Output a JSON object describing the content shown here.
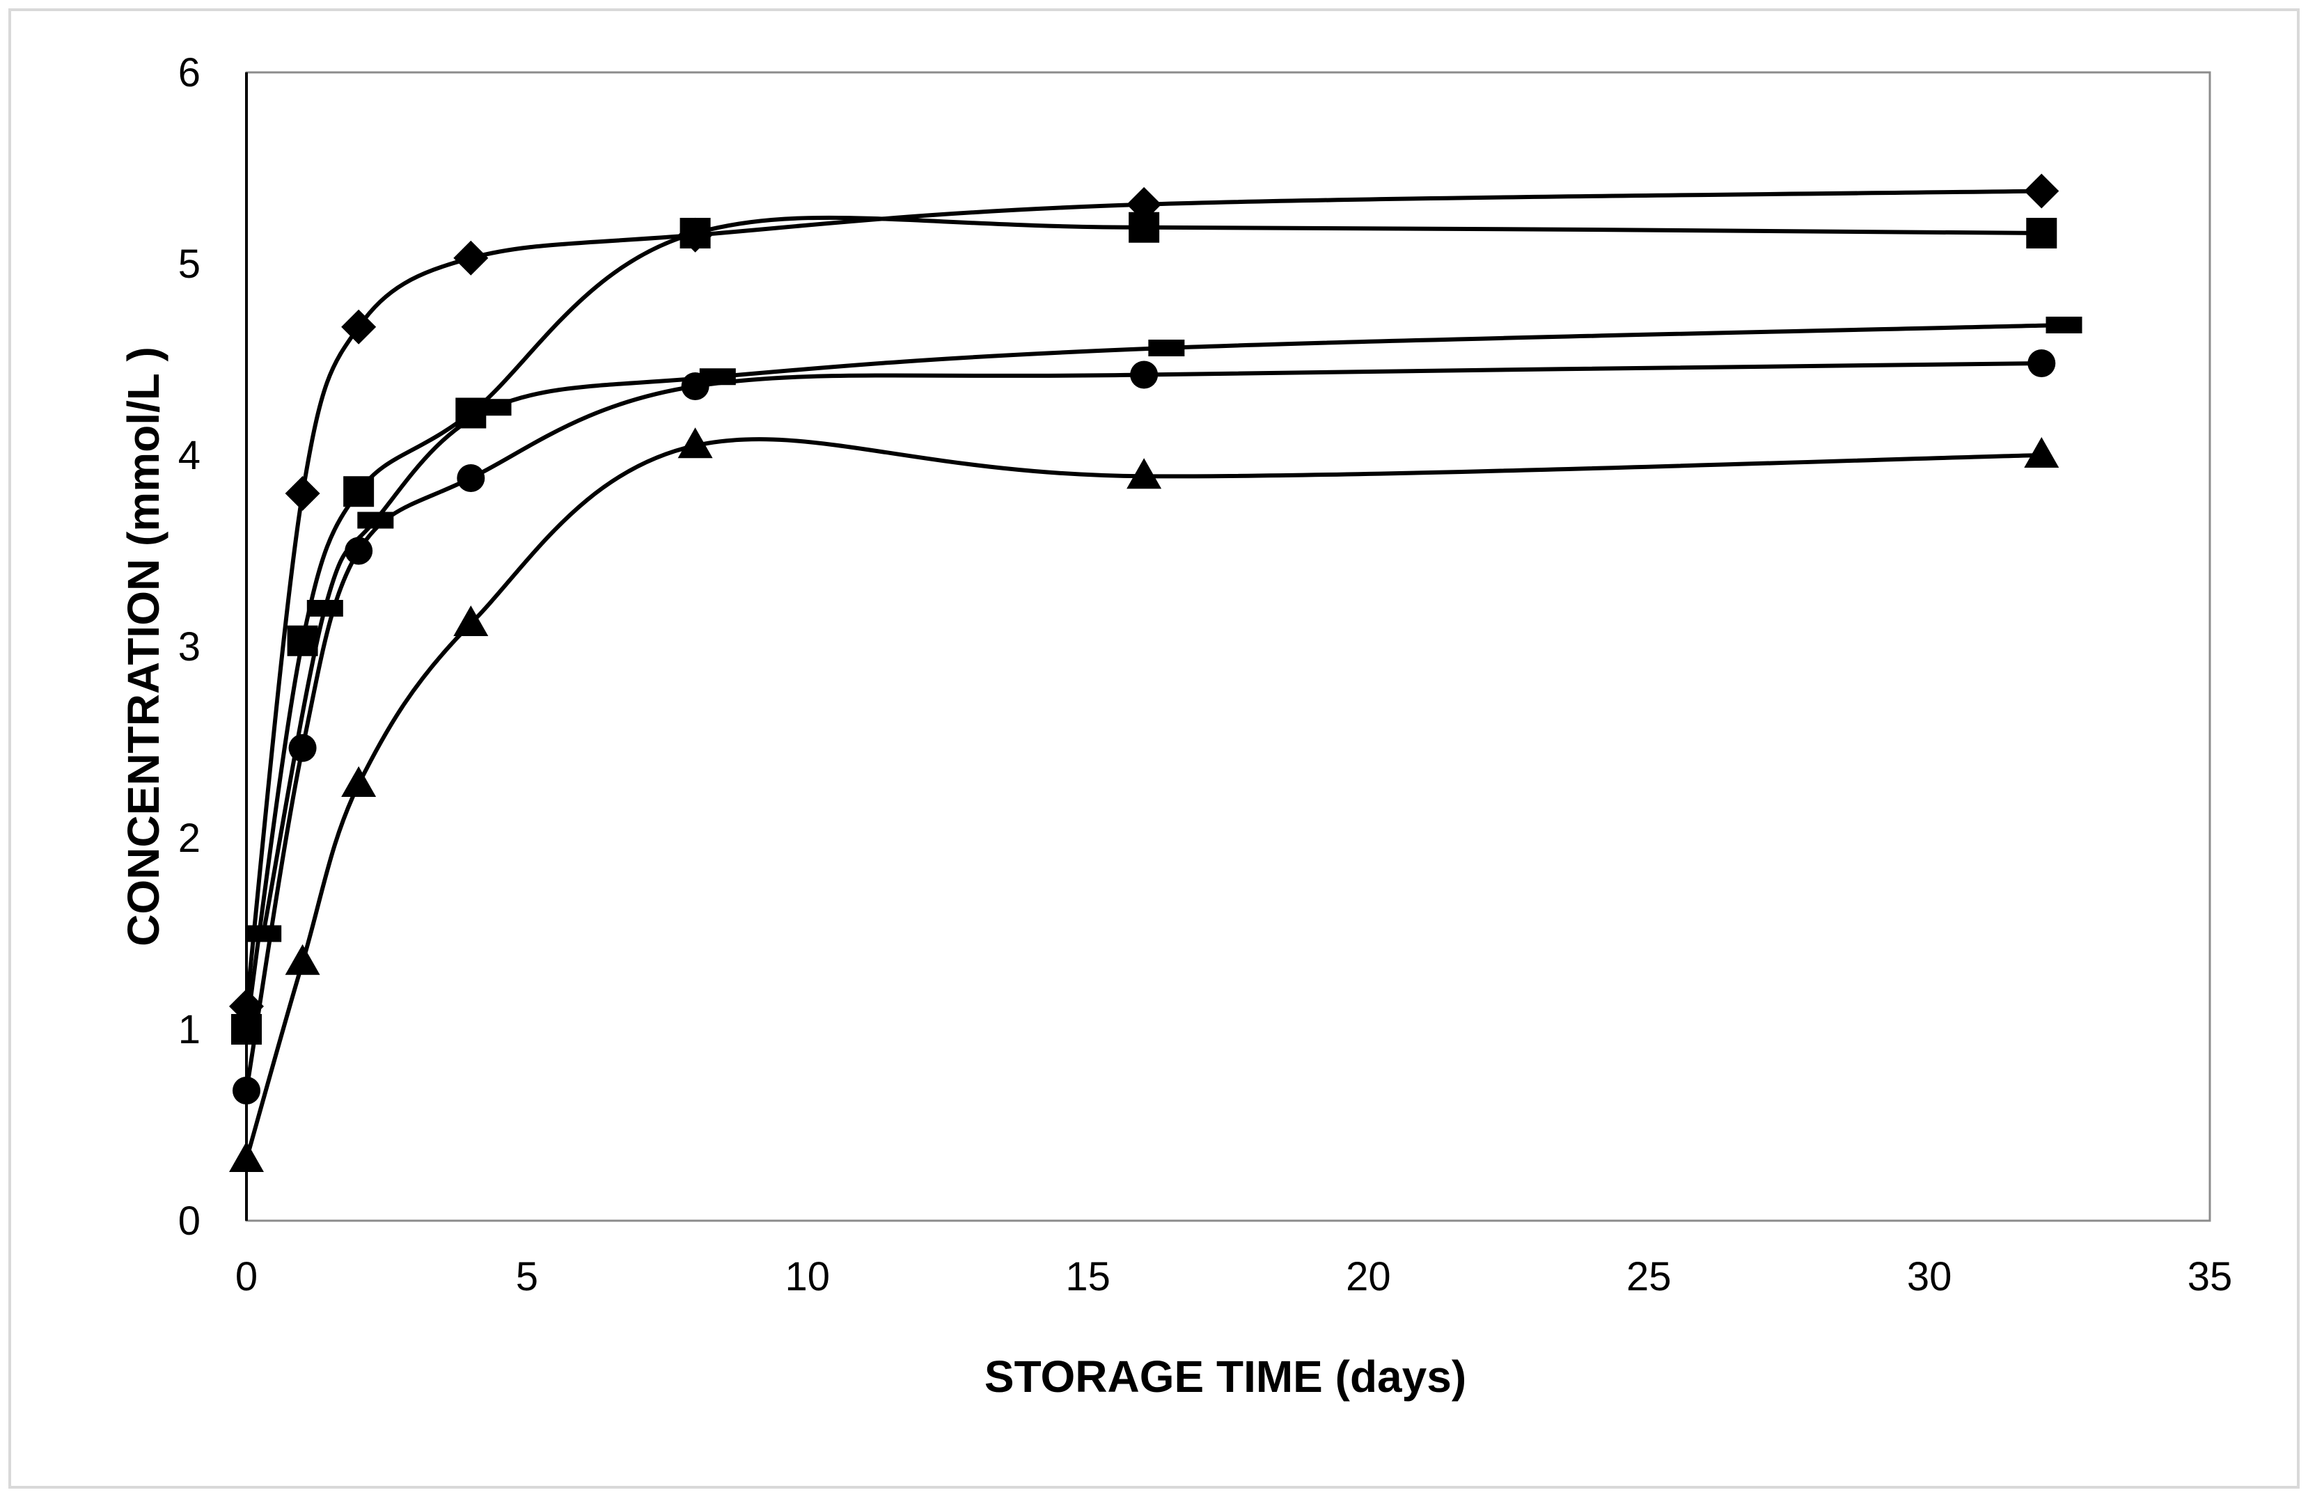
{
  "chart_data": {
    "type": "line",
    "title": "",
    "xlabel": "STORAGE TIME (days)",
    "ylabel": "CONCENTRATION (mmol/L )",
    "xlim": [
      0,
      35
    ],
    "ylim": [
      0,
      6
    ],
    "xticks": [
      0,
      5,
      10,
      15,
      20,
      25,
      30,
      35
    ],
    "yticks": [
      0,
      1,
      2,
      3,
      4,
      5,
      6
    ],
    "grid": false,
    "legend": "none",
    "series": [
      {
        "name": "diamond",
        "marker": "diamond",
        "x": [
          0,
          1,
          2,
          4,
          8,
          16,
          32
        ],
        "y": [
          1.12,
          3.8,
          4.67,
          5.03,
          5.15,
          5.31,
          5.38
        ]
      },
      {
        "name": "square",
        "marker": "square",
        "x": [
          0,
          1,
          2,
          4,
          8,
          16,
          32
        ],
        "y": [
          1.0,
          3.03,
          3.81,
          4.22,
          5.16,
          5.19,
          5.16
        ]
      },
      {
        "name": "dash",
        "marker": "dash",
        "x": [
          0.3,
          1.4,
          2.3,
          4.4,
          8.4,
          16.4,
          32.4
        ],
        "y": [
          1.5,
          3.2,
          3.66,
          4.25,
          4.41,
          4.56,
          4.68
        ]
      },
      {
        "name": "circle",
        "marker": "circle",
        "x": [
          0,
          1,
          2,
          4,
          8,
          16,
          32
        ],
        "y": [
          0.68,
          2.47,
          3.5,
          3.88,
          4.36,
          4.42,
          4.48
        ]
      },
      {
        "name": "triangle",
        "marker": "triangle",
        "x": [
          0,
          1,
          2,
          4,
          8,
          16,
          32
        ],
        "y": [
          0.32,
          1.35,
          2.28,
          3.12,
          4.05,
          3.89,
          4.0
        ]
      }
    ]
  }
}
